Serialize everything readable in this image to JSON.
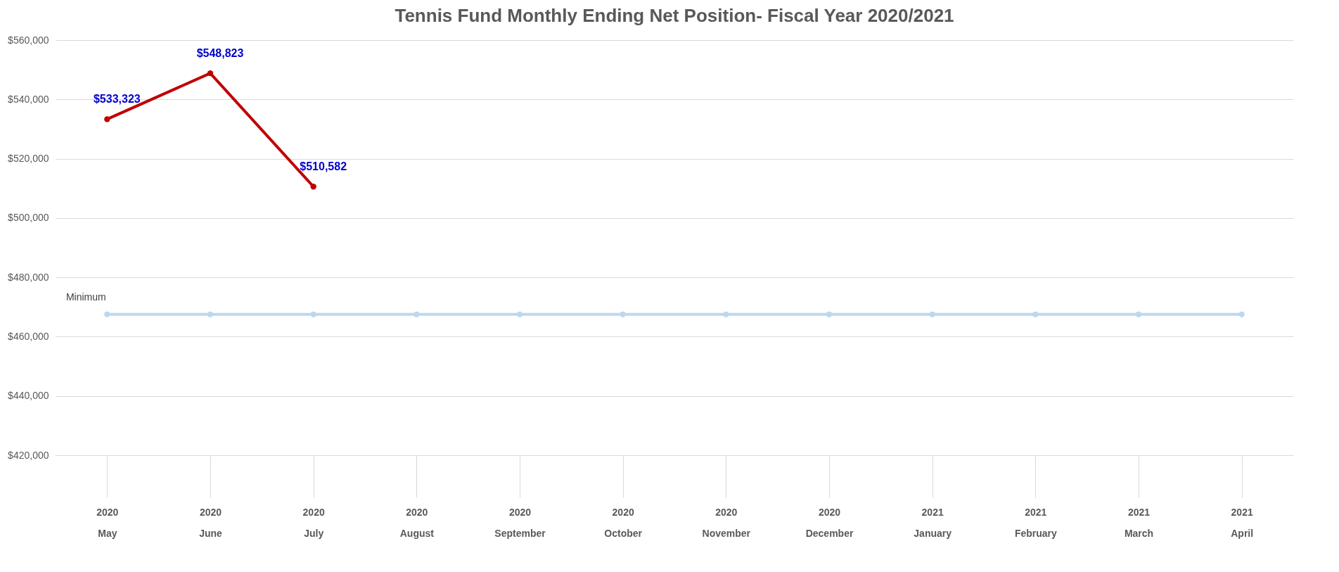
{
  "chart_data": {
    "type": "line",
    "title": "Tennis Fund Monthly Ending Net Position- Fiscal Year 2020/2021",
    "categories": [
      "2020\nMay",
      "2020\nJune",
      "2020\nJuly",
      "2020\nAugust",
      "2020\nSeptember",
      "2020\nOctober",
      "2020\nNovember",
      "2020\nDecember",
      "2021\nJanuary",
      "2021\nFebruary",
      "2021\nMarch",
      "2021\nApril"
    ],
    "series": [
      {
        "color": "#c00000",
        "values": [
          533323,
          548823,
          510582,
          null,
          null,
          null,
          null,
          null,
          null,
          null,
          null,
          null
        ],
        "value_labels": [
          "$533,323",
          "$548,823",
          "$510,582",
          null,
          null,
          null,
          null,
          null,
          null,
          null,
          null,
          null
        ]
      },
      {
        "name": "Minimum",
        "color": "#bdd7ee",
        "values": [
          467500,
          467500,
          467500,
          467500,
          467500,
          467500,
          467500,
          467500,
          467500,
          467500,
          467500,
          467500
        ]
      }
    ],
    "ylim": [
      420000,
      560000
    ],
    "yticks": [
      {
        "value": 420000,
        "label": "$420,000"
      },
      {
        "value": 440000,
        "label": "$440,000"
      },
      {
        "value": 460000,
        "label": "$460,000"
      },
      {
        "value": 480000,
        "label": "$480,000"
      },
      {
        "value": 500000,
        "label": "$500,000"
      },
      {
        "value": 520000,
        "label": "$520,000"
      },
      {
        "value": 540000,
        "label": "$540,000"
      },
      {
        "value": 560000,
        "label": "$560,000"
      }
    ],
    "grid": "y",
    "legend": false,
    "marker": "circle",
    "line_style": "solid"
  }
}
